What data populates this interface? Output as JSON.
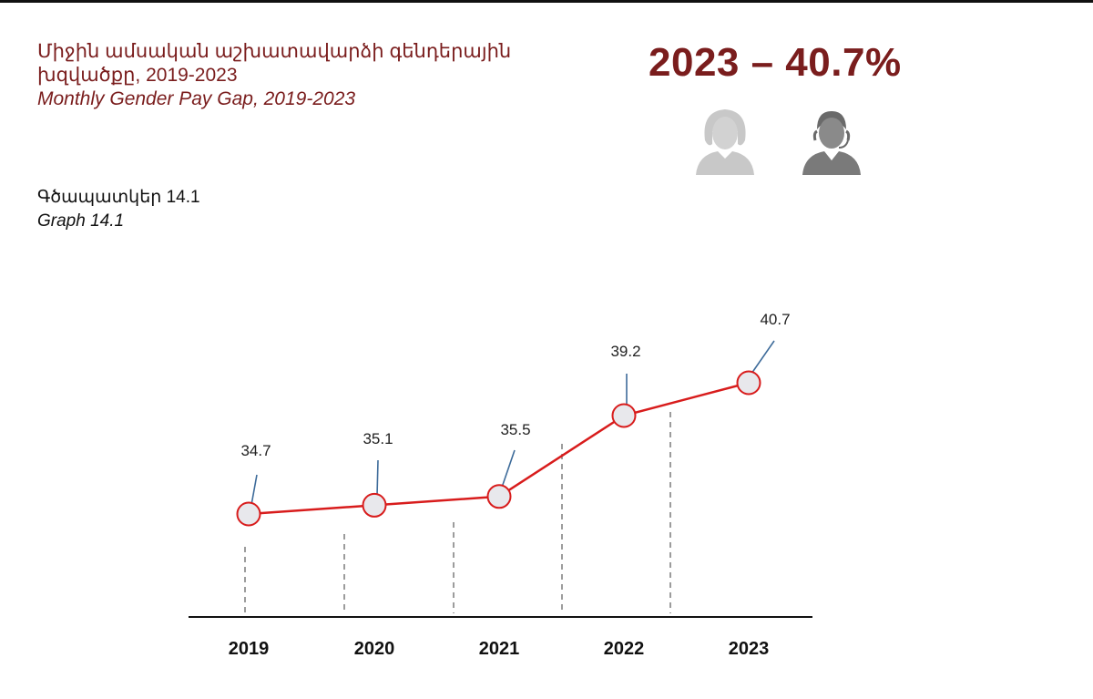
{
  "header": {
    "title_hy_line1": "Միջին ամսական աշխատավարձի գենդերային",
    "title_hy_line2": "խզվածքը, 2019-2023",
    "title_en": "Monthly Gender Pay Gap, 2019-2023",
    "highlight": "2023 – 40.7%"
  },
  "icons": {
    "female": "female-user-icon",
    "male": "male-user-icon"
  },
  "graph_label": {
    "hy": "Գծապատկեր 14.1",
    "en": "Graph 14.1"
  },
  "colors": {
    "accent": "#7a1d1d",
    "line": "#d81c1c",
    "marker_fill": "#e8e8ec",
    "leader": "#3d6b9a",
    "icon_female": "#c8c8c8",
    "icon_male": "#7a7a7a"
  },
  "chart_data": {
    "type": "line",
    "categories": [
      "2019",
      "2020",
      "2021",
      "2022",
      "2023"
    ],
    "values": [
      34.7,
      35.1,
      35.5,
      39.2,
      40.7
    ],
    "data_labels": [
      "34.7",
      "35.1",
      "35.5",
      "39.2",
      "40.7"
    ],
    "title": "",
    "xlabel": "",
    "ylabel": "",
    "grid": false,
    "legend": "none"
  }
}
